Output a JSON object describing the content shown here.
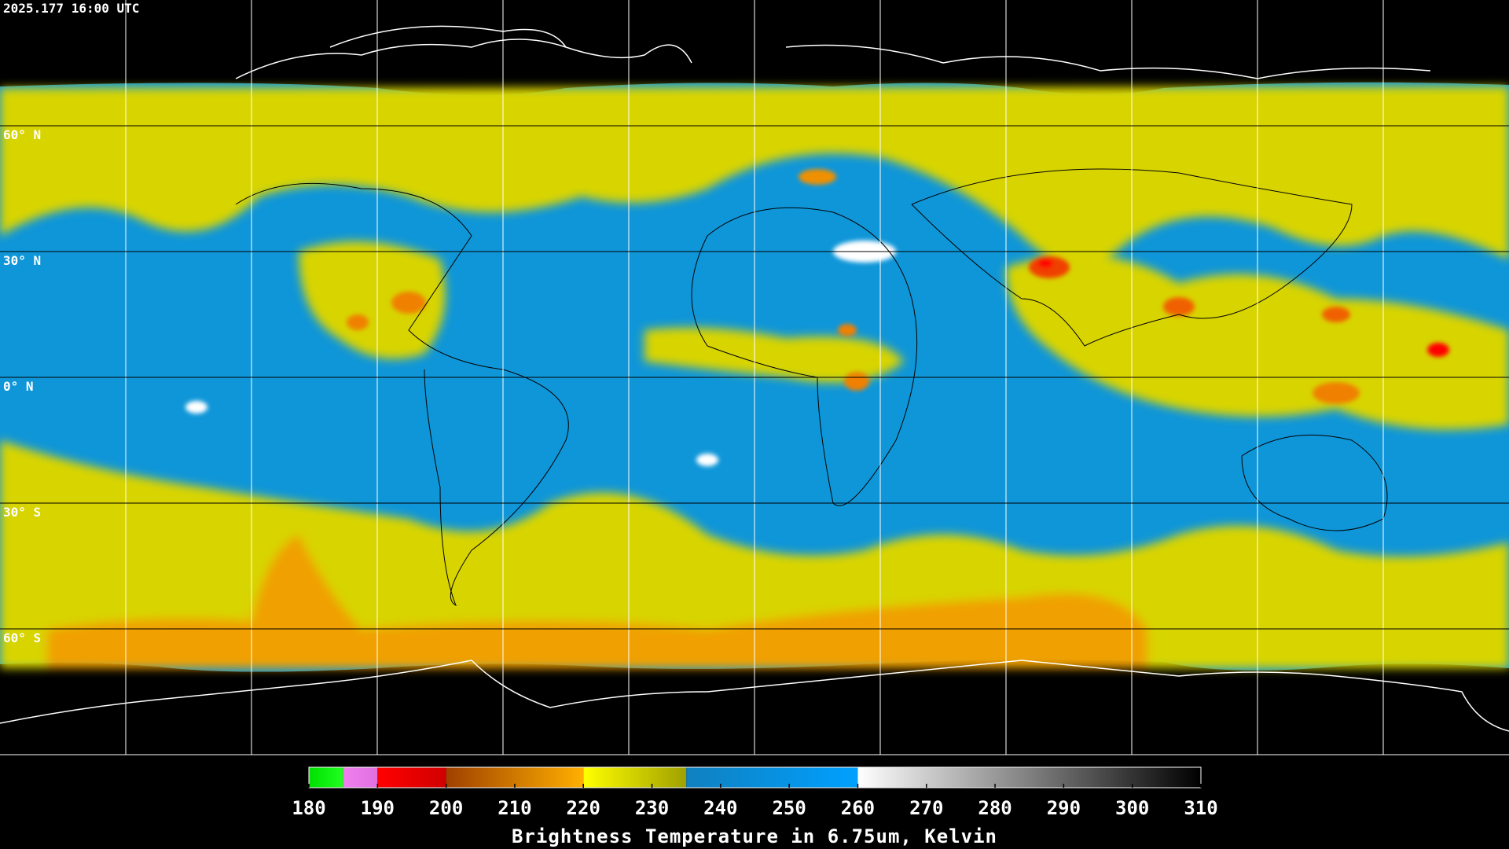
{
  "timestamp": "2025.177 16:00 UTC",
  "lat_labels": [
    {
      "value": 60,
      "label": "60° N"
    },
    {
      "value": 30,
      "label": "30° N"
    },
    {
      "value": 0,
      "label": "0° N"
    },
    {
      "value": -30,
      "label": "30° S"
    },
    {
      "value": -60,
      "label": "60° S"
    }
  ],
  "colorbar": {
    "title": "Brightness Temperature in 6.75um, Kelvin",
    "ticks": [
      180,
      190,
      200,
      210,
      220,
      230,
      240,
      250,
      260,
      270,
      280,
      290,
      300,
      310
    ],
    "segments": [
      {
        "from": 180,
        "to": 185,
        "colors": [
          "#00e000",
          "#20ff20"
        ]
      },
      {
        "from": 185,
        "to": 190,
        "colors": [
          "#f080f0",
          "#e070e0"
        ]
      },
      {
        "from": 190,
        "to": 200,
        "colors": [
          "#ff0000",
          "#d00000"
        ]
      },
      {
        "from": 200,
        "to": 220,
        "colors": [
          "#a04000",
          "#ffb000"
        ]
      },
      {
        "from": 220,
        "to": 235,
        "colors": [
          "#ffff00",
          "#a0a000"
        ]
      },
      {
        "from": 235,
        "to": 260,
        "colors": [
          "#1080c0",
          "#00a0ff"
        ]
      },
      {
        "from": 260,
        "to": 310,
        "colors": [
          "#ffffff",
          "#000000"
        ]
      }
    ]
  }
}
